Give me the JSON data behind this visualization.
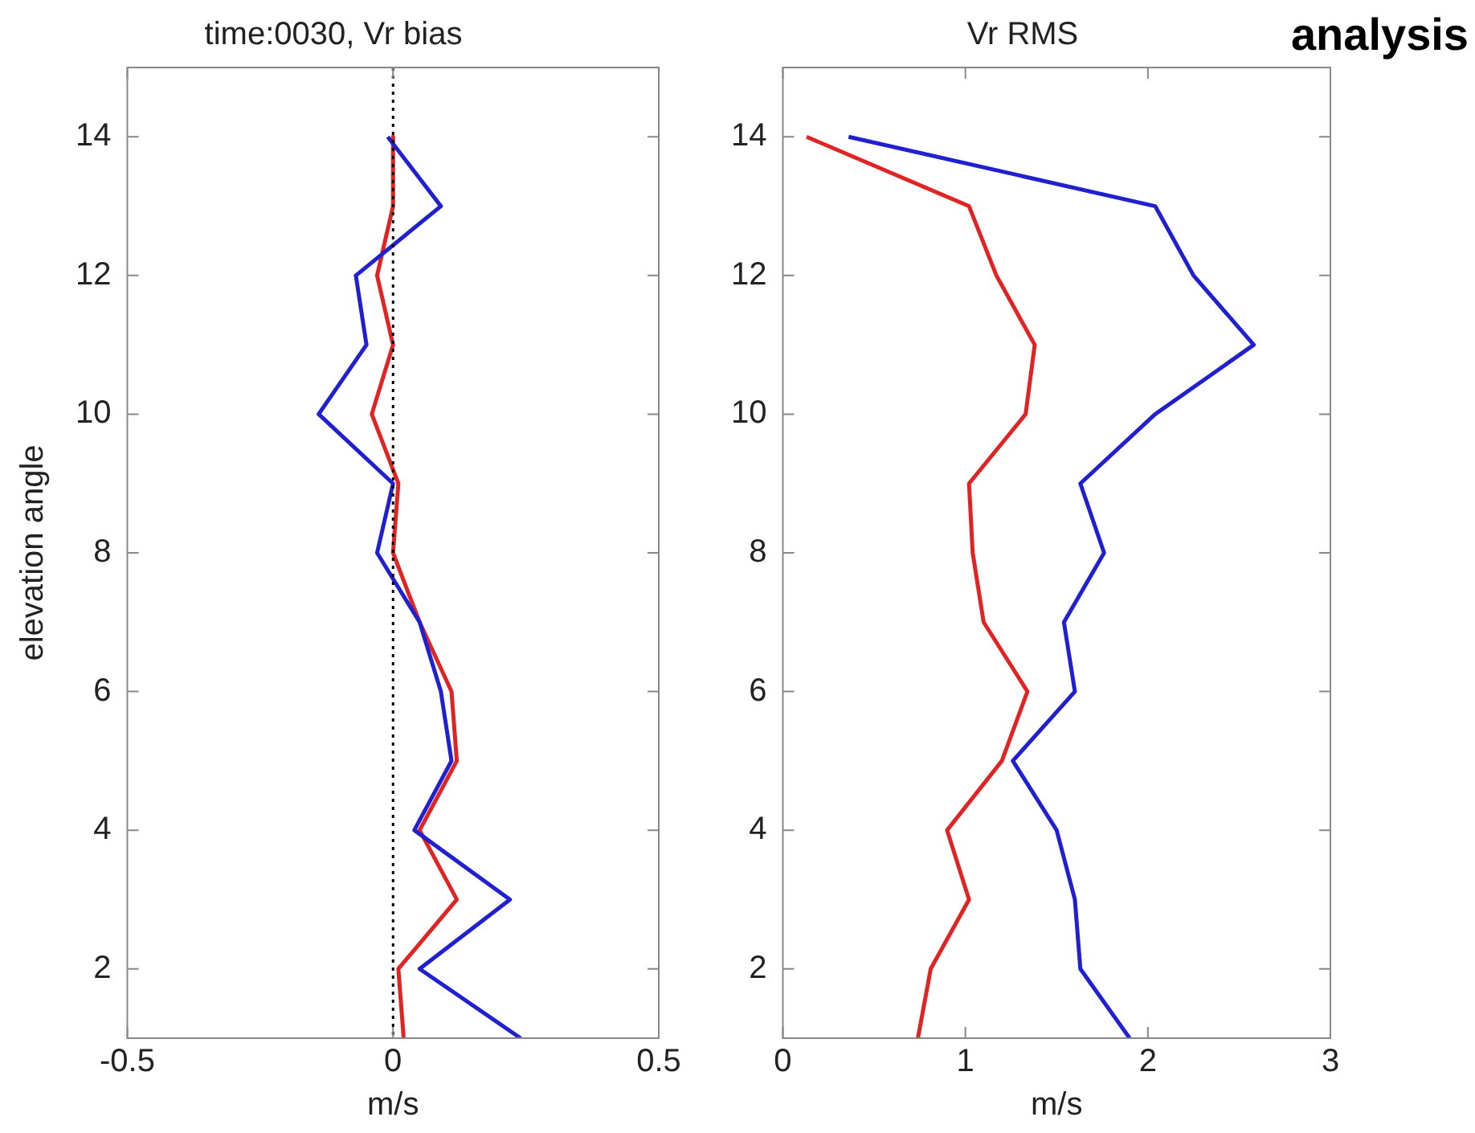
{
  "chart_data": [
    {
      "type": "line",
      "title": "time:0030, Vr bias",
      "xlabel": "m/s",
      "ylabel": "elevation angle",
      "xlim": [
        -0.5,
        0.5
      ],
      "xticks": [
        -0.5,
        0,
        0.5
      ],
      "ylim": [
        1,
        15
      ],
      "yticks": [
        2,
        4,
        6,
        8,
        10,
        12,
        14
      ],
      "grid": false,
      "legend": false,
      "marker": "none",
      "ref_lines": [
        {
          "axis": "x",
          "value": 0,
          "color": "#000000",
          "line_style": "dotted"
        }
      ],
      "series": [
        {
          "color": "#2020d0",
          "x": [
            -0.01,
            0.09,
            -0.07,
            -0.05,
            -0.14,
            0,
            -0.03,
            0.05,
            0.09,
            0.11,
            0.04,
            0.22,
            0.05,
            0.24
          ],
          "values": [
            14,
            13,
            12,
            11,
            10,
            9,
            8,
            7,
            6,
            5,
            4,
            3,
            2,
            1
          ]
        },
        {
          "color": "#e02424",
          "x": [
            0,
            0,
            -0.03,
            0,
            -0.04,
            0.01,
            0,
            0.05,
            0.11,
            0.12,
            0.05,
            0.12,
            0.01,
            0.02
          ],
          "values": [
            14,
            13,
            12,
            11,
            10,
            9,
            8,
            7,
            6,
            5,
            4,
            3,
            2,
            1
          ]
        }
      ]
    },
    {
      "type": "line",
      "title": "Vr RMS",
      "xlabel": "m/s",
      "xlim": [
        0,
        3
      ],
      "xticks": [
        0,
        1,
        2,
        3
      ],
      "ylim": [
        1,
        15
      ],
      "yticks": [
        2,
        4,
        6,
        8,
        10,
        12,
        14
      ],
      "grid": false,
      "legend": false,
      "marker": "none",
      "annotations": [
        "analysis"
      ],
      "series": [
        {
          "color": "#2020d0",
          "x": [
            0.36,
            2.04,
            2.25,
            2.58,
            2.04,
            1.63,
            1.76,
            1.54,
            1.6,
            1.26,
            1.5,
            1.6,
            1.63,
            1.9
          ],
          "values": [
            14,
            13,
            12,
            11,
            10,
            9,
            8,
            7,
            6,
            5,
            4,
            3,
            2,
            1
          ]
        },
        {
          "color": "#e02424",
          "x": [
            0.13,
            1.02,
            1.17,
            1.38,
            1.33,
            1.02,
            1.04,
            1.1,
            1.34,
            1.2,
            0.9,
            1.02,
            0.81,
            0.74
          ],
          "values": [
            14,
            13,
            12,
            11,
            10,
            9,
            8,
            7,
            6,
            5,
            4,
            3,
            2,
            1
          ]
        }
      ]
    }
  ]
}
